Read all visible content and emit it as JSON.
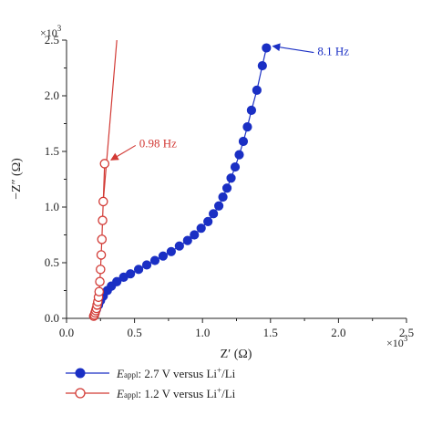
{
  "chart_data": {
    "type": "scatter",
    "title": "",
    "xlabel": "Z′ (Ω)",
    "ylabel": "−Z″ (Ω)",
    "x_multiplier": "×10",
    "x_multiplier_exp": "3",
    "y_multiplier": "×10",
    "y_multiplier_exp": "3",
    "xlim": [
      0.0,
      2.5
    ],
    "ylim": [
      0.0,
      2.5
    ],
    "xticks": [
      "0.0",
      "0.5",
      "1.0",
      "1.5",
      "2.0",
      "2.5"
    ],
    "yticks": [
      "0.0",
      "0.5",
      "1.0",
      "1.5",
      "2.0",
      "2.5"
    ],
    "grid": false,
    "legend_placement": "bottom",
    "series": [
      {
        "label_prefix": "E",
        "label_sub": "appl",
        "label_mid": ": 2.7 V versus Li",
        "label_sup": "+",
        "label_end": "/Li",
        "color": "#1a2fc4",
        "marker": "filled-circle",
        "x": [
          0.2,
          0.21,
          0.22,
          0.235,
          0.25,
          0.27,
          0.3,
          0.33,
          0.37,
          0.42,
          0.47,
          0.53,
          0.59,
          0.65,
          0.71,
          0.77,
          0.83,
          0.89,
          0.94,
          0.99,
          1.04,
          1.08,
          1.12,
          1.15,
          1.18,
          1.21,
          1.24,
          1.27,
          1.3,
          1.33,
          1.36,
          1.4,
          1.44,
          1.47
        ],
        "y": [
          0.02,
          0.05,
          0.08,
          0.12,
          0.16,
          0.2,
          0.25,
          0.29,
          0.33,
          0.37,
          0.4,
          0.44,
          0.48,
          0.52,
          0.56,
          0.6,
          0.65,
          0.7,
          0.75,
          0.81,
          0.87,
          0.94,
          1.01,
          1.09,
          1.17,
          1.26,
          1.36,
          1.47,
          1.59,
          1.72,
          1.87,
          2.05,
          2.27,
          2.43
        ],
        "line_path": true
      },
      {
        "label_prefix": "E",
        "label_sub": "appl",
        "label_mid": ": 1.2 V versus Li",
        "label_sup": "+",
        "label_end": "/Li",
        "color": "#d23a35",
        "marker": "open-circle",
        "x": [
          0.2,
          0.205,
          0.21,
          0.215,
          0.22,
          0.225,
          0.23,
          0.235,
          0.24,
          0.245,
          0.25,
          0.255,
          0.26,
          0.265,
          0.27,
          0.28
        ],
        "y": [
          0.02,
          0.03,
          0.05,
          0.07,
          0.09,
          0.12,
          0.15,
          0.19,
          0.24,
          0.33,
          0.44,
          0.57,
          0.71,
          0.88,
          1.05,
          1.39
        ],
        "line_extension": [
          [
            0.27,
            1.05
          ],
          [
            0.37,
            2.5
          ]
        ]
      }
    ],
    "annotations": [
      {
        "text": "8.1 Hz",
        "color": "#1a2fc4",
        "x": 1.47,
        "y": 2.43
      },
      {
        "text": "0.98 Hz",
        "color": "#d23a35",
        "x": 0.28,
        "y": 1.39
      }
    ]
  }
}
